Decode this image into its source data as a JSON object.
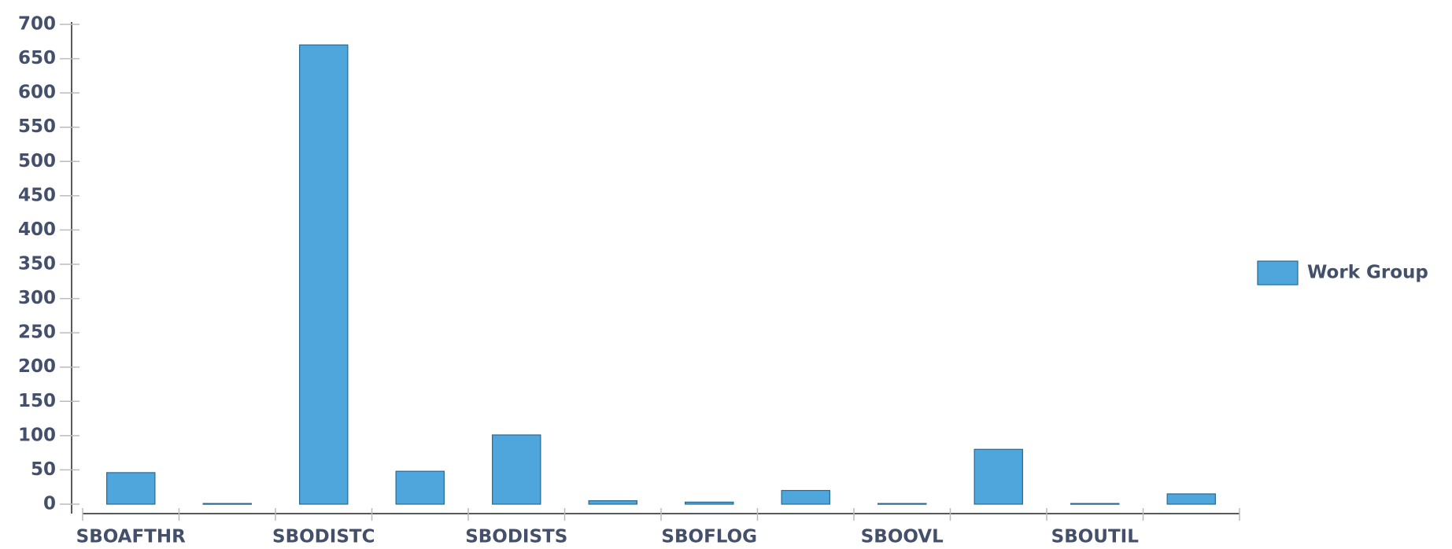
{
  "chart_data": {
    "type": "bar",
    "categories": [
      "SBOAFTHR",
      null,
      "SBODISTC",
      null,
      "SBODISTS",
      null,
      "SBOFLOG",
      null,
      "SBOOVL",
      null,
      "SBOUTIL",
      null
    ],
    "series": [
      {
        "name": "Work Group",
        "color": "#4fa6dc",
        "values": [
          46,
          1,
          670,
          48,
          101,
          5,
          3,
          20,
          1,
          80,
          1,
          15
        ]
      }
    ],
    "ylim": [
      0,
      700
    ],
    "yticks": [
      0,
      50,
      100,
      150,
      200,
      250,
      300,
      350,
      400,
      450,
      500,
      550,
      600,
      650,
      700
    ],
    "legend": "right"
  }
}
